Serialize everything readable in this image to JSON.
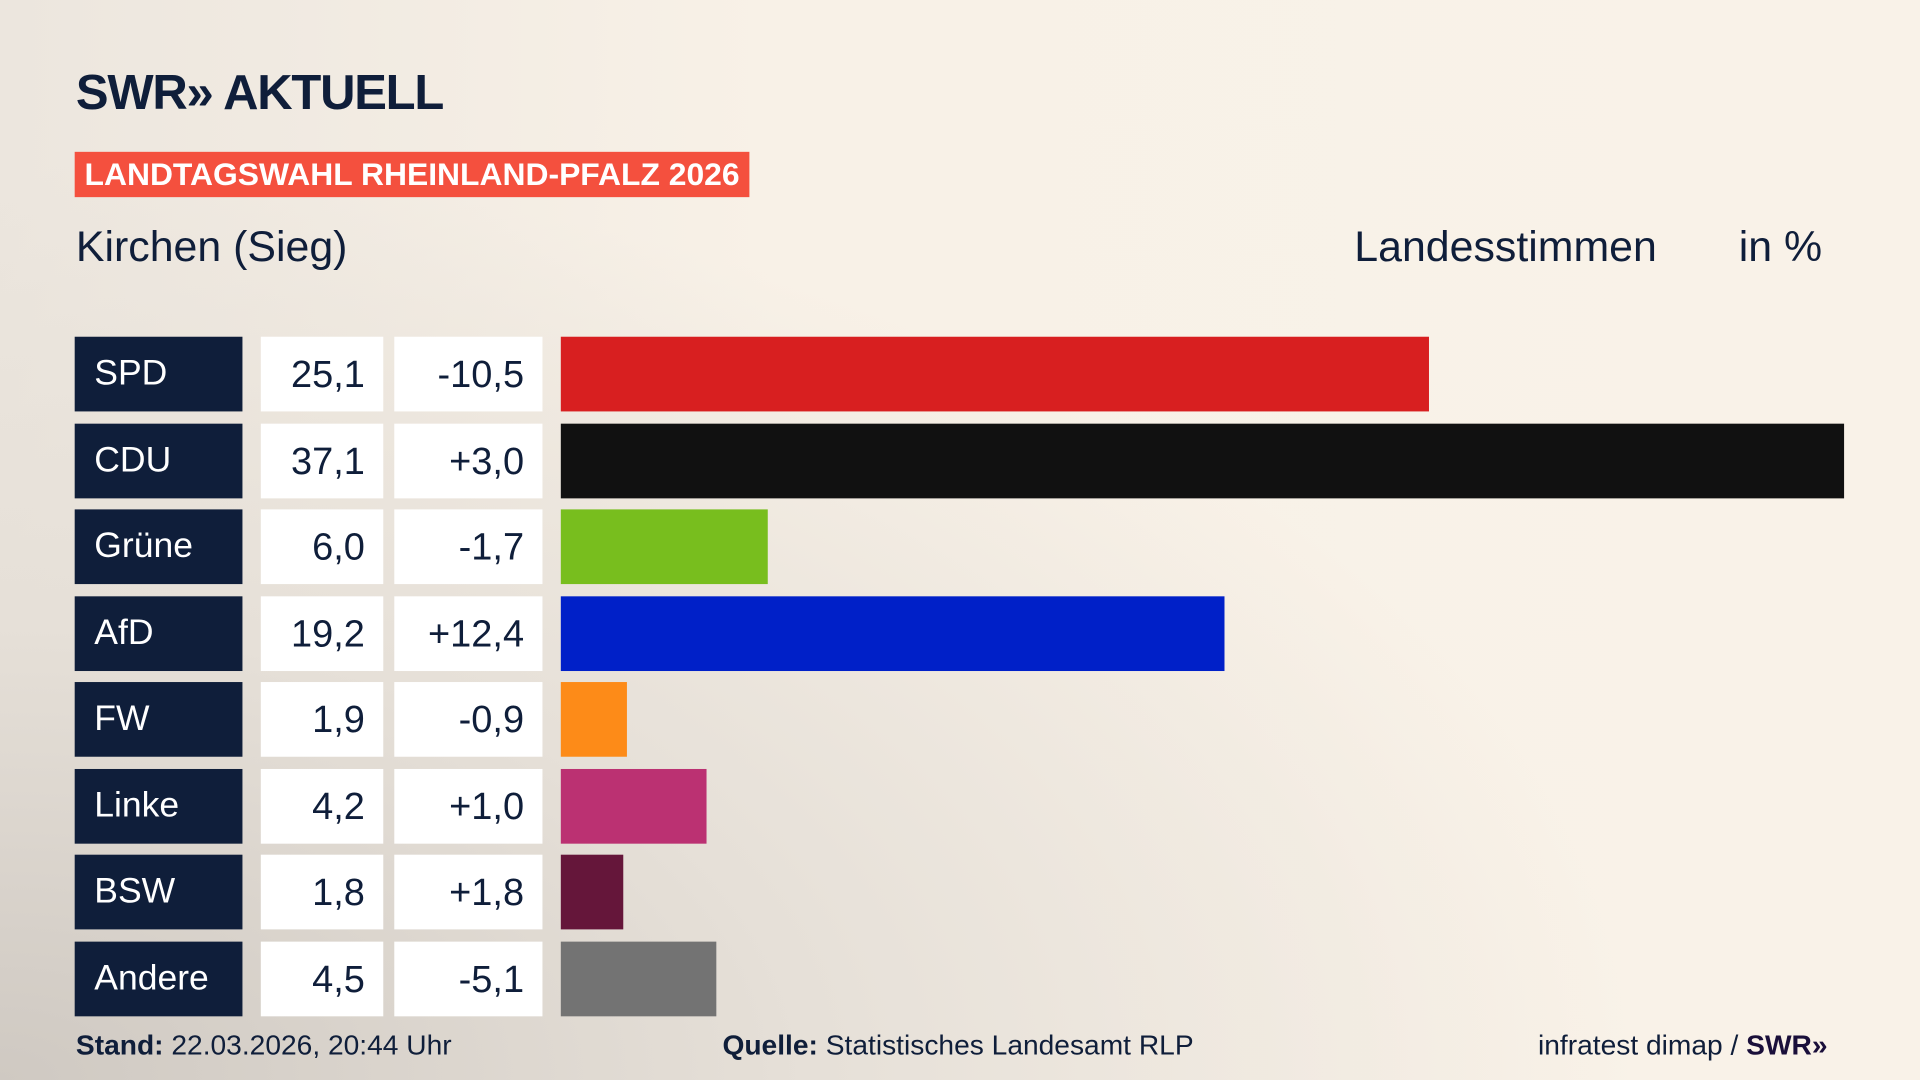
{
  "logo": "SWR» AKTUELL",
  "election_tag": "LANDTAGSWAHL RHEINLAND-PFALZ 2026",
  "region": "Kirchen (Sieg)",
  "header_votes": "Landesstimmen",
  "header_unit": "in %",
  "chart_data": {
    "type": "bar",
    "orientation": "horizontal",
    "categories": [
      "SPD",
      "CDU",
      "Grüne",
      "AfD",
      "FW",
      "Linke",
      "BSW",
      "Andere"
    ],
    "values": [
      25.1,
      37.1,
      6.0,
      19.2,
      1.9,
      4.2,
      1.8,
      4.5
    ],
    "value_labels": [
      "25,1",
      "37,1",
      "6,0",
      "19,2",
      "1,9",
      "4,2",
      "1,8",
      "4,5"
    ],
    "diff_labels": [
      "-10,5",
      "+3,0",
      "-1,7",
      "+12,4",
      "-0,9",
      "+1,0",
      "+1,8",
      "-5,1"
    ],
    "diffs": [
      -10.5,
      3.0,
      -1.7,
      12.4,
      -0.9,
      1.0,
      1.8,
      -5.1
    ],
    "colors": [
      "#d81f20",
      "#111111",
      "#78be1e",
      "#0020c8",
      "#fd8b18",
      "#bb3172",
      "#65163a",
      "#737373"
    ],
    "unit": "%"
  },
  "footer": {
    "stand_label": "Stand:",
    "stand_value": "22.03.2026, 20:44 Uhr",
    "source_label": "Quelle:",
    "source_value": "Statistisches Landesamt RLP",
    "credit": "infratest dimap /",
    "credit_logo": "SWR»"
  }
}
